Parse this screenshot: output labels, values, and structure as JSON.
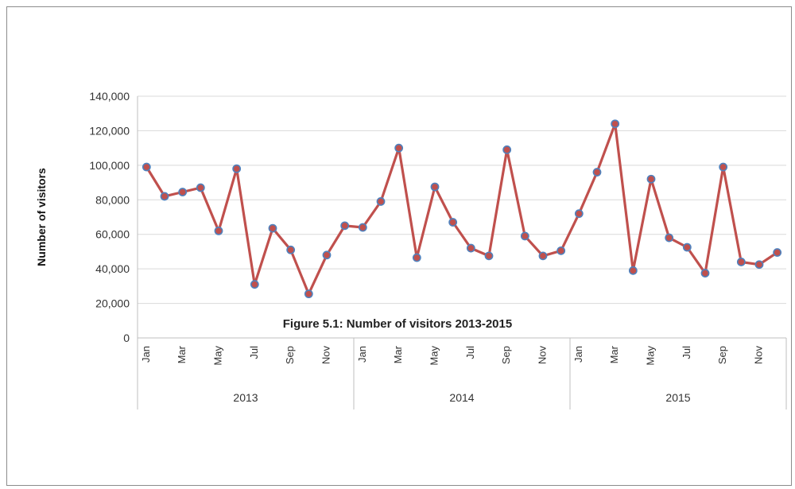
{
  "caption": "Figure 5.1: Number of visitors 2013-2015",
  "chart_data": {
    "type": "line",
    "title": "",
    "xlabel": "",
    "ylabel": "Number of visitors",
    "ylim": [
      0,
      140000
    ],
    "yticks": [
      0,
      20000,
      40000,
      60000,
      80000,
      100000,
      120000,
      140000
    ],
    "ytick_labels": [
      "0",
      "20,000",
      "40,000",
      "60,000",
      "80,000",
      "100,000",
      "120,000",
      "140,000"
    ],
    "grid": true,
    "legend": "none",
    "groups": [
      {
        "label": "2013",
        "month_labels": [
          "Jan",
          "",
          "Mar",
          "",
          "May",
          "",
          "Jul",
          "",
          "Sep",
          "",
          "Nov",
          ""
        ]
      },
      {
        "label": "2014",
        "month_labels": [
          "Jan",
          "",
          "Mar",
          "",
          "May",
          "",
          "Jul",
          "",
          "Sep",
          "",
          "Nov",
          ""
        ]
      },
      {
        "label": "2015",
        "month_labels": [
          "Jan",
          "",
          "Mar",
          "",
          "May",
          "",
          "Jul",
          "",
          "Sep",
          "",
          "Nov",
          ""
        ]
      }
    ],
    "series": [
      {
        "color": "#c0504d",
        "marker_color": "#4f81bd",
        "values": [
          99000,
          82000,
          84500,
          87000,
          62000,
          98000,
          31000,
          63500,
          51000,
          25500,
          48000,
          65000,
          64000,
          79000,
          110000,
          46500,
          87500,
          67000,
          52000,
          47500,
          109000,
          59000,
          47500,
          50500,
          72000,
          96000,
          124000,
          39000,
          92000,
          58000,
          52500,
          37500,
          99000,
          44000,
          42500,
          49500
        ]
      }
    ]
  }
}
